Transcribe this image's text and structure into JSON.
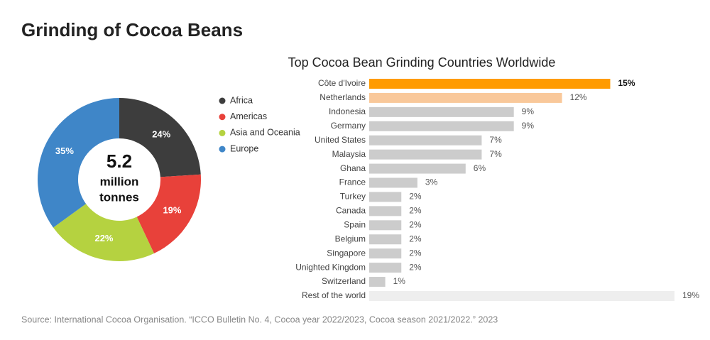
{
  "title": "Grinding of Cocoa Beans",
  "source": "Source: International Cocoa Organisation. “ICCO Bulletin No. 4, Cocoa year 2022/2023, Cocoa season 2021/2022.” 2023",
  "chart_data": [
    {
      "type": "pie",
      "donut": true,
      "center_value": 5.2,
      "center_unit_lines": [
        "million",
        "tonnes"
      ],
      "categories": [
        "Africa",
        "Americas",
        "Asia and Oceania",
        "Europe"
      ],
      "values": [
        24,
        19,
        22,
        35
      ],
      "value_labels": [
        "24%",
        "19%",
        "22%",
        "35%"
      ],
      "colors": [
        "#3d3d3d",
        "#e8413a",
        "#b5d240",
        "#3f86c8"
      ],
      "legend": "right"
    },
    {
      "type": "hbar",
      "title": "Top Cocoa Bean Grinding Countries Worldwide",
      "categories": [
        "Côte d'Ivoire",
        "Netherlands",
        "Indonesia",
        "Germany",
        "United States",
        "Malaysia",
        "Ghana",
        "France",
        "Turkey",
        "Canada",
        "Spain",
        "Belgium",
        "Singapore",
        "Unighted Kingdom",
        "Switzerland",
        "Rest of the world"
      ],
      "values": [
        15,
        12,
        9,
        9,
        7,
        7,
        6,
        3,
        2,
        2,
        2,
        2,
        2,
        2,
        1,
        19
      ],
      "value_labels": [
        "15%",
        "12%",
        "9%",
        "9%",
        "7%",
        "7%",
        "6%",
        "3%",
        "2%",
        "2%",
        "2%",
        "2%",
        "2%",
        "2%",
        "1%",
        "19%"
      ],
      "colors": [
        "#ff9b00",
        "#f9c89a",
        "#cccccc",
        "#cccccc",
        "#cccccc",
        "#cccccc",
        "#cccccc",
        "#cccccc",
        "#cccccc",
        "#cccccc",
        "#cccccc",
        "#cccccc",
        "#cccccc",
        "#cccccc",
        "#cccccc",
        "#eeeeee"
      ],
      "highlight": 0
    }
  ]
}
